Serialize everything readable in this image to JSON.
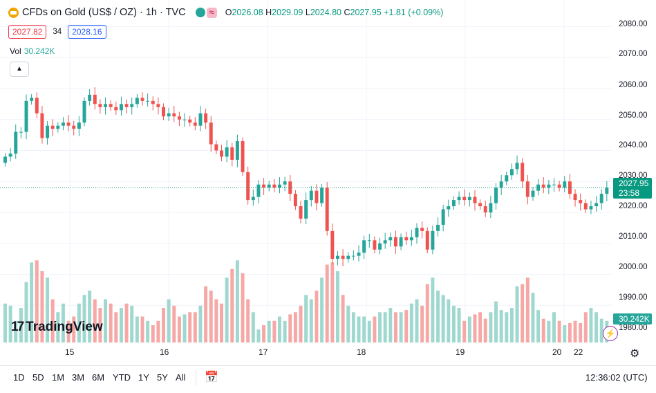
{
  "header": {
    "symbol_title": "CFDs on Gold (US$ / OZ) · 1h · TVC",
    "pill_label": "≈",
    "ohlc": {
      "o_label": "O",
      "o": "2026.08",
      "h_label": "H",
      "h": "2029.09",
      "l_label": "L",
      "l": "2024.80",
      "c_label": "C",
      "c": "2027.95",
      "change": "+1.81 (+0.09%)"
    },
    "bid": "2027.82",
    "spread": "34",
    "ask": "2028.16",
    "vol_label": "Vol",
    "vol_value": "30.242K"
  },
  "logo_text": "TradingView",
  "price_axis": {
    "ticks": [
      "2080.00",
      "2070.00",
      "2060.00",
      "2050.00",
      "2040.00",
      "2030.00",
      "2020.00",
      "2010.00",
      "2000.00",
      "1990.00",
      "1980.00"
    ]
  },
  "current_price": {
    "value": "2027.95",
    "countdown": "23:58"
  },
  "volume_label": "30.242K",
  "time_axis": {
    "ticks": [
      "15",
      "16",
      "17",
      "18",
      "19",
      "20",
      "22"
    ]
  },
  "toolbar": {
    "ranges": [
      "1D",
      "5D",
      "1M",
      "3M",
      "6M",
      "YTD",
      "1Y",
      "5Y",
      "All"
    ],
    "clock": "12:36:02 (UTC)"
  },
  "colors": {
    "up": "#26a69a",
    "down": "#ef5350",
    "up_vol": "#9fd8cf",
    "down_vol": "#f5a8a6"
  },
  "chart_data": {
    "type": "candlestick",
    "y_range": [
      1978,
      2083
    ],
    "current_price": 2027.95,
    "close": [
      2038,
      2039,
      2046,
      2046,
      2056,
      2057,
      2052,
      2044,
      2048,
      2047,
      2048,
      2049,
      2048,
      2047,
      2049,
      2056,
      2058,
      2055,
      2054,
      2055,
      2054,
      2053,
      2055,
      2054,
      2055,
      2057,
      2056,
      2056,
      2055,
      2054,
      2051,
      2052,
      2051,
      2050,
      2050,
      2049,
      2048,
      2052,
      2049,
      2042,
      2040,
      2038,
      2041,
      2037,
      2043,
      2033,
      2024,
      2025,
      2029,
      2028,
      2029,
      2028,
      2029,
      2030,
      2026,
      2022,
      2018,
      2024,
      2027,
      2023,
      2028,
      2014,
      2005,
      2006,
      2005,
      2006,
      2006,
      2007,
      2011,
      2011,
      2008,
      2010,
      2011,
      2012,
      2009,
      2012,
      2011,
      2012,
      2015,
      2014,
      2008,
      2014,
      2016,
      2021,
      2022,
      2024,
      2025,
      2024,
      2025,
      2023,
      2022,
      2020,
      2023,
      2028,
      2030,
      2032,
      2034,
      2036,
      2030,
      2025,
      2027,
      2029,
      2028,
      2029,
      2029,
      2028,
      2030,
      2026,
      2024,
      2023,
      2021,
      2022,
      2023,
      2026,
      2028
    ],
    "volume": [
      18,
      17,
      10,
      16,
      28,
      37,
      38,
      33,
      30,
      20,
      14,
      18,
      10,
      12,
      18,
      22,
      24,
      20,
      16,
      20,
      18,
      14,
      16,
      18,
      17,
      12,
      12,
      10,
      8,
      10,
      16,
      20,
      17,
      12,
      13,
      14,
      14,
      17,
      26,
      24,
      20,
      18,
      30,
      34,
      38,
      32,
      20,
      14,
      6,
      8,
      10,
      10,
      12,
      10,
      13,
      14,
      17,
      22,
      20,
      24,
      30,
      36,
      37,
      33,
      22,
      17,
      14,
      12,
      12,
      10,
      12,
      14,
      14,
      16,
      14,
      14,
      15,
      18,
      20,
      17,
      27,
      30,
      24,
      22,
      20,
      17,
      16,
      10,
      12,
      13,
      14,
      11,
      14,
      19,
      15,
      14,
      16,
      26,
      27,
      30,
      23,
      15,
      11,
      10,
      14,
      10,
      8,
      9,
      10,
      9,
      14,
      16,
      14,
      11,
      10
    ]
  }
}
